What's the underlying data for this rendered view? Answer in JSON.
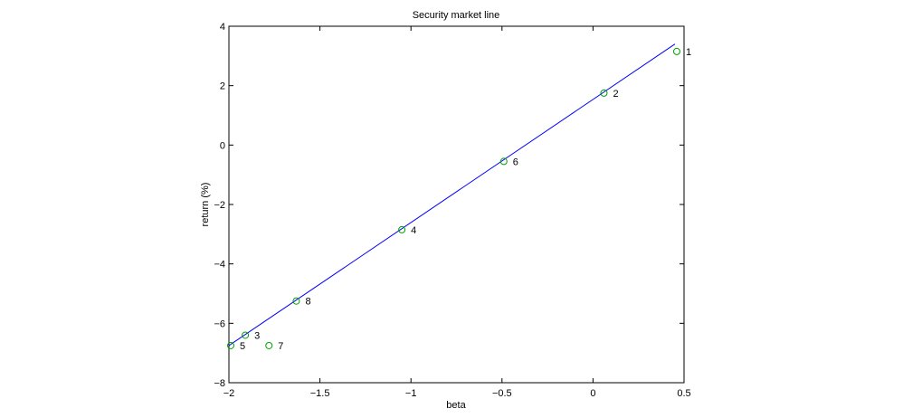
{
  "chart_data": {
    "type": "scatter",
    "title": "Security market line",
    "xlabel": "beta",
    "ylabel": "return (%)",
    "xlim": [
      -2,
      0.5
    ],
    "ylim": [
      -8,
      4
    ],
    "xticks": [
      -2,
      -1.5,
      -1,
      -0.5,
      0,
      0.5
    ],
    "yticks": [
      -8,
      -6,
      -4,
      -2,
      0,
      2,
      4
    ],
    "xtick_labels": [
      "−2",
      "−1.5",
      "−1",
      "−0.5",
      "0",
      "0.5"
    ],
    "ytick_labels": [
      "−8",
      "−6",
      "−4",
      "−2",
      "0",
      "2",
      "4"
    ],
    "grid": false,
    "points": [
      {
        "label": "1",
        "x": 0.46,
        "y": 3.15
      },
      {
        "label": "2",
        "x": 0.06,
        "y": 1.75
      },
      {
        "label": "3",
        "x": -1.91,
        "y": -6.4
      },
      {
        "label": "4",
        "x": -1.05,
        "y": -2.85
      },
      {
        "label": "5",
        "x": -1.99,
        "y": -6.75
      },
      {
        "label": "6",
        "x": -0.49,
        "y": -0.55
      },
      {
        "label": "7",
        "x": -1.78,
        "y": -6.75
      },
      {
        "label": "8",
        "x": -1.63,
        "y": -5.25
      }
    ],
    "line": {
      "x": [
        -2.0,
        0.45
      ],
      "y": [
        -6.75,
        3.4
      ]
    },
    "colors": {
      "points": "#00a000",
      "point_outline_on_line": "#0000ff",
      "line": "#0000ff"
    }
  }
}
